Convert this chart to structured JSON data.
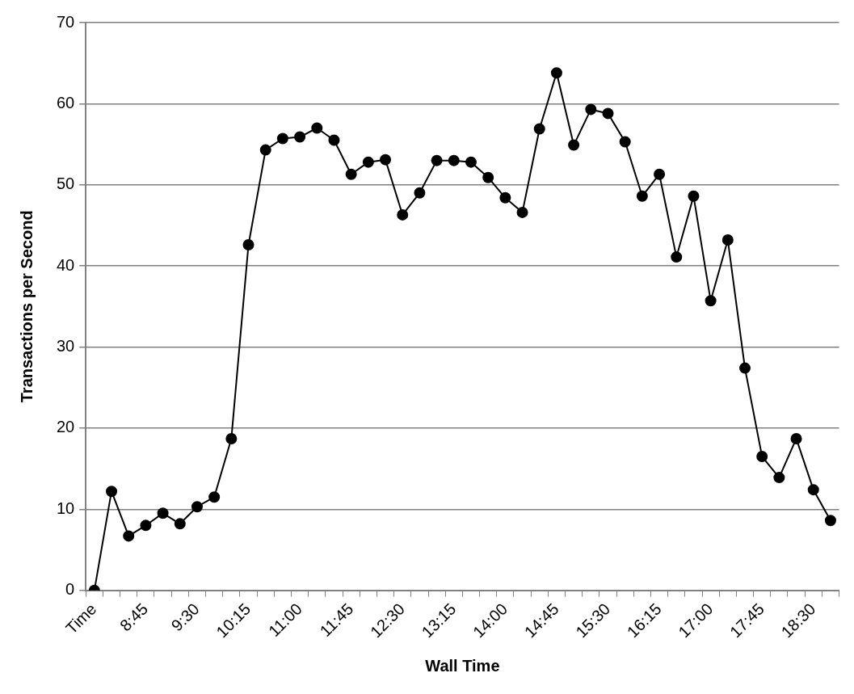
{
  "chart_data": {
    "type": "line",
    "xlabel": "Wall Time",
    "ylabel": "Transactions per Second",
    "categories": [
      "Time",
      null,
      null,
      "8:45",
      null,
      null,
      "9:30",
      null,
      null,
      "10:15",
      null,
      null,
      "11:00",
      null,
      null,
      "11:45",
      null,
      null,
      "12:30",
      null,
      null,
      "13:15",
      null,
      null,
      "14:00",
      null,
      null,
      "14:45",
      null,
      null,
      "15:30",
      null,
      null,
      "16:15",
      null,
      null,
      "17:00",
      null,
      null,
      "17:45",
      null,
      null,
      "18:30",
      null
    ],
    "series": [
      {
        "color": "#000000",
        "values": [
          0,
          12.2,
          6.7,
          8.0,
          9.5,
          8.2,
          10.3,
          11.5,
          18.7,
          42.6,
          54.3,
          55.7,
          55.9,
          57.0,
          55.5,
          51.3,
          52.8,
          53.1,
          46.3,
          49.0,
          53.0,
          53.0,
          52.8,
          50.9,
          48.4,
          46.6,
          56.9,
          63.8,
          54.9,
          59.3,
          58.8,
          55.3,
          48.6,
          51.3,
          41.1,
          48.6,
          35.7,
          43.2,
          27.4,
          16.5,
          13.9,
          18.7,
          12.4,
          8.6
        ]
      }
    ],
    "ylim": [
      0,
      70
    ],
    "yticks": [
      0,
      10,
      20,
      30,
      40,
      50,
      60,
      70
    ],
    "grid": "y",
    "legend": false,
    "marker": "circle",
    "line_style": "solid"
  }
}
